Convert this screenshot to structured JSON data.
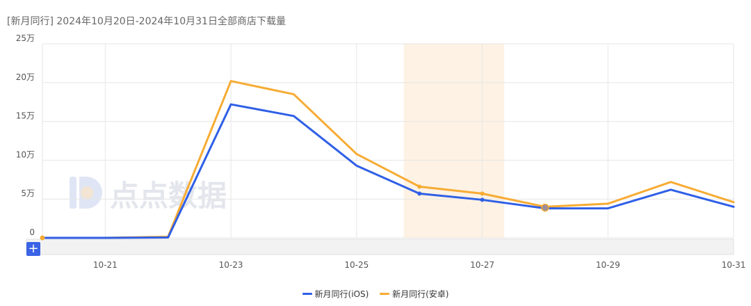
{
  "header": {
    "title": "[新月同行] 2024年10月20日-2024年10月31日全部商店下载量"
  },
  "watermark": {
    "logo_icon": "diandian-logo-icon",
    "text": "点点数据"
  },
  "zoom_control": {
    "label": "+",
    "icon": "plus-icon"
  },
  "colors": {
    "ios": "#2f5fe6",
    "android": "#f7ab33",
    "highlight_band": "#fdf2e4",
    "grid": "#e6e6e6"
  },
  "chart_data": {
    "type": "line",
    "x": [
      "10-20",
      "10-21",
      "10-22",
      "10-23",
      "10-24",
      "10-25",
      "10-26",
      "10-27",
      "10-28",
      "10-29",
      "10-30",
      "10-31"
    ],
    "x_tick_labels": [
      "10-21",
      "10-23",
      "10-25",
      "10-27",
      "10-29",
      "10-31"
    ],
    "y_tick_labels": [
      "0",
      "5万",
      "10万",
      "15万",
      "20万",
      "25万"
    ],
    "ylim": [
      0,
      250000
    ],
    "highlight_range": [
      "10-25",
      "10-27"
    ],
    "series": [
      {
        "name": "新月同行(iOS)",
        "color": "#2f5fe6",
        "values": [
          0,
          0,
          500,
          172000,
          157000,
          93000,
          57000,
          49000,
          38000,
          38000,
          62000,
          40000
        ]
      },
      {
        "name": "新月同行(安卓)",
        "color": "#f7ab33",
        "values": [
          0,
          0,
          1500,
          202000,
          185000,
          108000,
          66000,
          57000,
          40000,
          44000,
          72000,
          46000
        ]
      }
    ],
    "grid": true,
    "legend": "bottom-center"
  }
}
